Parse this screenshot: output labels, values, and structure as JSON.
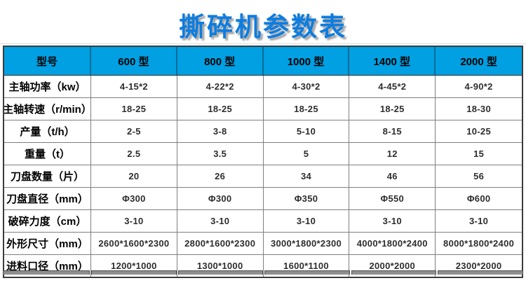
{
  "page": {
    "title": "撕碎机参数表"
  },
  "colors": {
    "title_blue": "#0d7de0",
    "header_bg": "#00a0e2",
    "header_separator": "#0a6b97",
    "grid_line": "#7f7f7f",
    "outer_border": "#3c3c3c",
    "value_text": "#2e2e2e",
    "strip_gray": "#8f8f8f"
  },
  "table": {
    "header": [
      "型号",
      "600 型",
      "800 型",
      "1000 型",
      "1400 型",
      "2000 型"
    ],
    "rows": [
      {
        "label": "主轴功率（kw）",
        "values": [
          "4-15*2",
          "4-22*2",
          "4-30*2",
          "4-45*2",
          "4-90*2"
        ]
      },
      {
        "label": "主轴转速（r/min）",
        "values": [
          "18-25",
          "18-25",
          "18-25",
          "18-25",
          "18-30"
        ]
      },
      {
        "label": "产量（t/h）",
        "values": [
          "2-5",
          "3-8",
          "5-10",
          "8-15",
          "10-25"
        ]
      },
      {
        "label": "重量（t）",
        "values": [
          "2.5",
          "3.5",
          "5",
          "12",
          "15"
        ]
      },
      {
        "label": "刀盘数量（片）",
        "values": [
          "20",
          "26",
          "34",
          "46",
          "56"
        ]
      },
      {
        "label": "刀盘直径（mm）",
        "values": [
          "Φ300",
          "Φ300",
          "Φ350",
          "Φ550",
          "Φ600"
        ]
      },
      {
        "label": "破碎力度（cm）",
        "values": [
          "3-10",
          "3-10",
          "3-10",
          "3-10",
          "3-10"
        ]
      },
      {
        "label": "外形尺寸（mm）",
        "values": [
          "2600*1600*2300",
          "2800*1600*2300",
          "3000*1800*2300",
          "4000*1800*2400",
          "8000*1800*2400"
        ]
      },
      {
        "label": "进料口径（mm）",
        "values": [
          "1200*1000",
          "1300*1000",
          "1600*1100",
          "2000*2000",
          "2300*2000"
        ]
      }
    ]
  }
}
